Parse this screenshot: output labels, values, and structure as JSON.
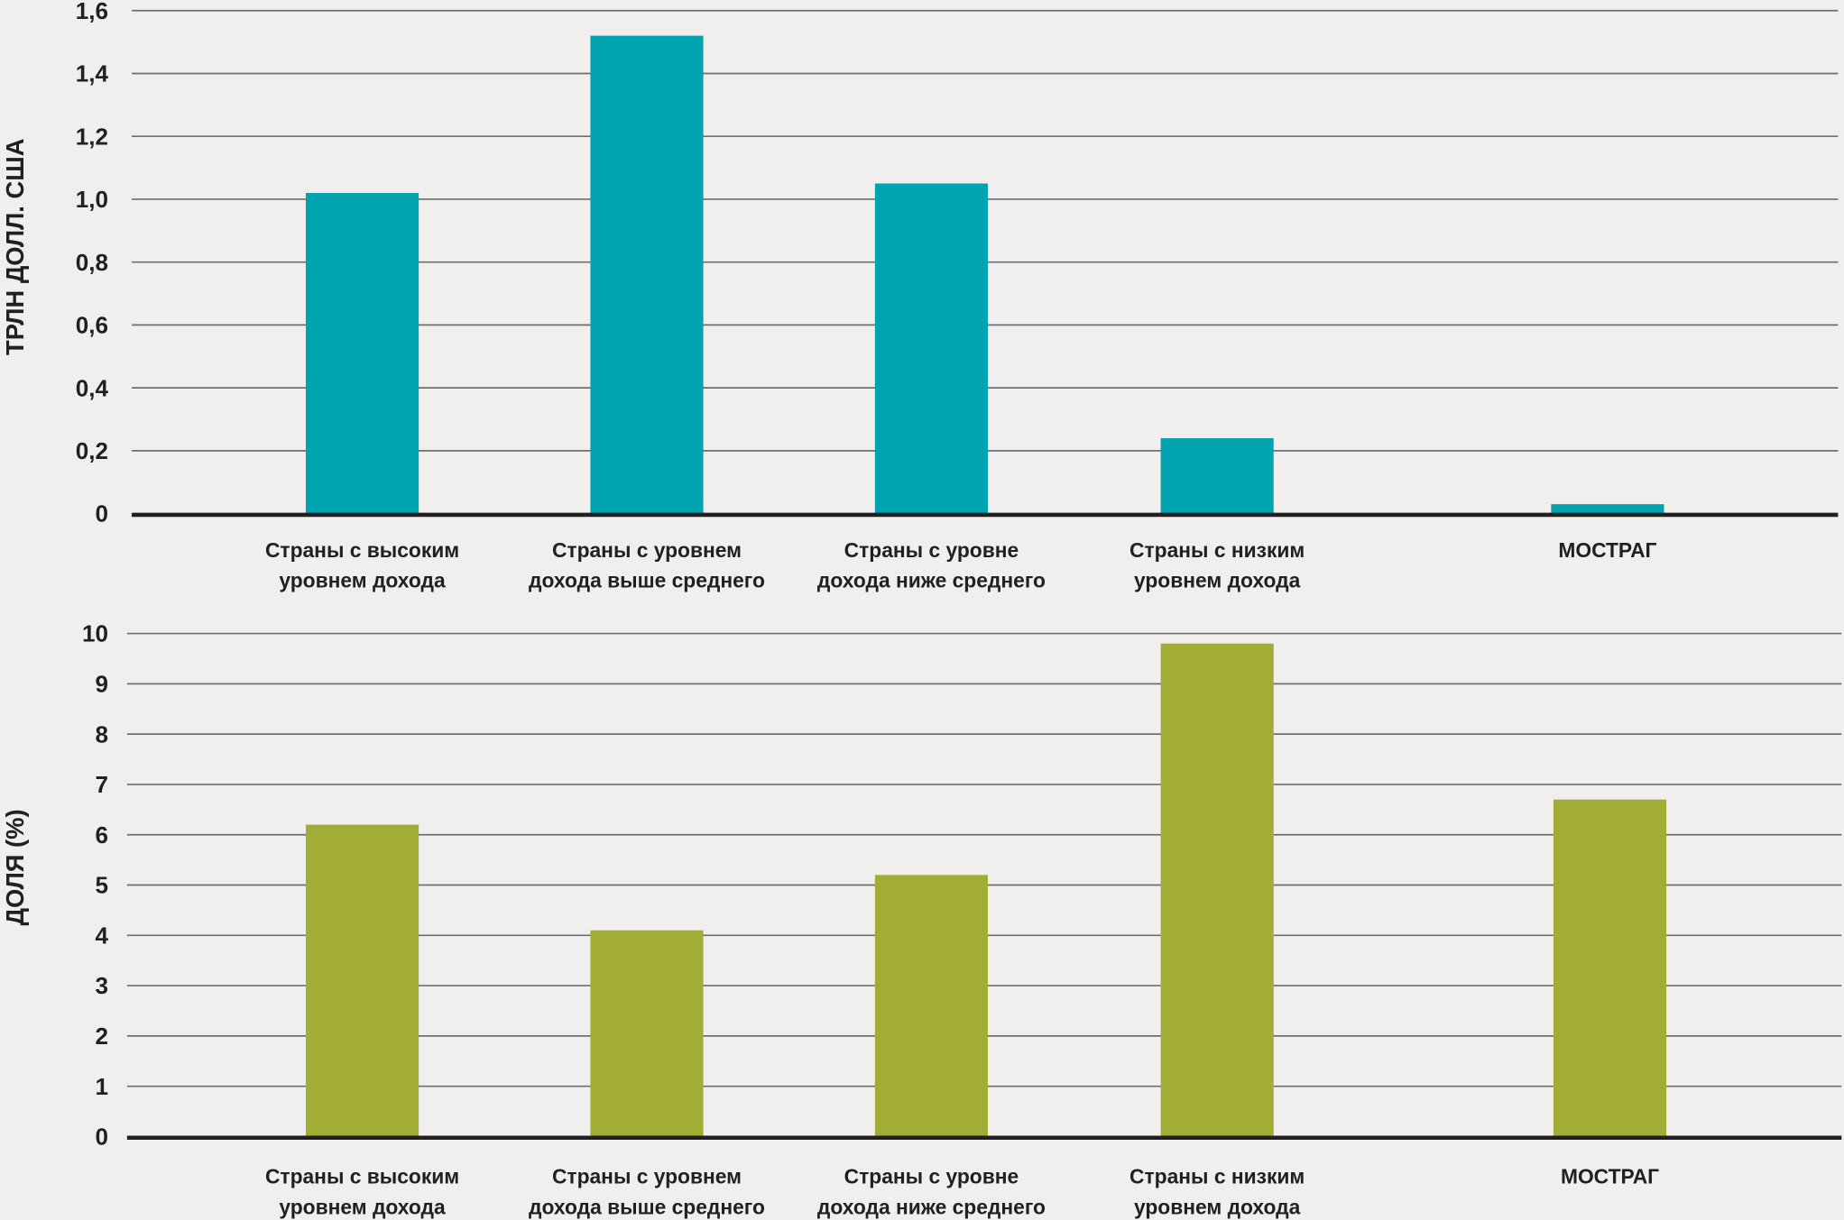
{
  "chart_data": [
    {
      "type": "bar",
      "title": "",
      "xlabel": "",
      "ylabel": "ТРЛН ДОЛЛ. США",
      "ylim": [
        0,
        1.6
      ],
      "yticks": [
        "0",
        "0,2",
        "0,4",
        "0,6",
        "0,8",
        "1,0",
        "1,2",
        "1,4",
        "1,6"
      ],
      "grid": true,
      "color": "#00a3b0",
      "categories": [
        [
          "Страны с высоким",
          "уровнем дохода"
        ],
        [
          "Страны с уровнем",
          "дохода выше среднего"
        ],
        [
          "Страны с уровне",
          "дохода ниже среднего"
        ],
        [
          "Страны с низким",
          "уровнем дохода"
        ],
        [
          "МОСТРАГ"
        ]
      ],
      "values": [
        1.02,
        1.52,
        1.05,
        0.24,
        0.03
      ]
    },
    {
      "type": "bar",
      "title": "",
      "xlabel": "",
      "ylabel": "ДОЛЯ (%)",
      "ylim": [
        0,
        10
      ],
      "yticks": [
        "0",
        "1",
        "2",
        "3",
        "4",
        "5",
        "6",
        "7",
        "8",
        "9",
        "10"
      ],
      "grid": true,
      "color": "#a2ad35",
      "categories": [
        [
          "Страны с высоким",
          "уровнем дохода"
        ],
        [
          "Страны с уровнем",
          "дохода выше среднего"
        ],
        [
          "Страны с уровне",
          "дохода ниже среднего"
        ],
        [
          "Страны с низким",
          "уровнем дохода"
        ],
        [
          "МОСТРАГ"
        ]
      ],
      "values": [
        6.2,
        4.1,
        5.2,
        9.8,
        6.7
      ]
    }
  ]
}
